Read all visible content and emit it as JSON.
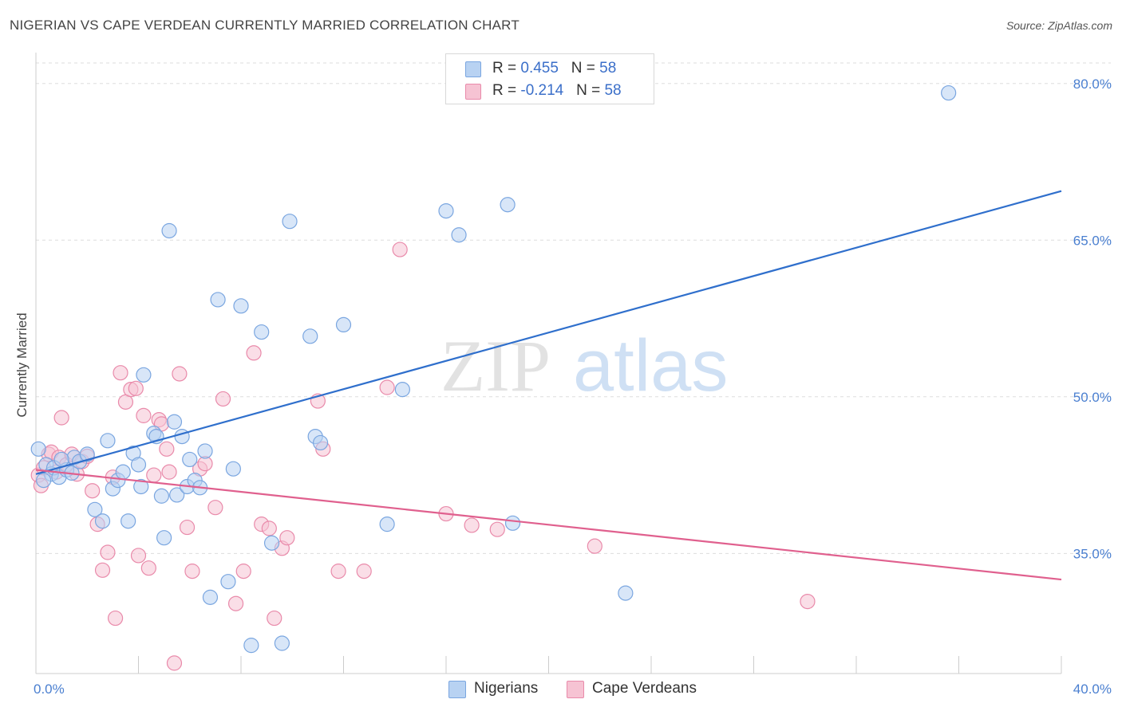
{
  "header": {
    "title": "NIGERIAN VS CAPE VERDEAN CURRENTLY MARRIED CORRELATION CHART",
    "source": "Source: ZipAtlas.com"
  },
  "legend": {
    "row1": {
      "r_label": "R = ",
      "r_value": "0.455",
      "n_label": "N = ",
      "n_value": "58"
    },
    "row2": {
      "r_label": "R = ",
      "r_value": "-0.214",
      "n_label": "N = ",
      "n_value": "58"
    }
  },
  "watermark": {
    "zip": "ZIP",
    "atlas": "atlas"
  },
  "colors": {
    "blue_fill": "#b8d2f2",
    "blue_stroke": "#7aa6e0",
    "blue_line": "#2f6fcc",
    "pink_fill": "#f6c3d3",
    "pink_stroke": "#e98aaa",
    "pink_line": "#e0608e",
    "tick_text": "#4a7fd0",
    "grid": "#dddddd"
  },
  "chart_data": {
    "type": "scatter",
    "xlabel": "",
    "ylabel": "Currently Married",
    "xlim": [
      0,
      40
    ],
    "ylim": [
      23.5,
      82.5
    ],
    "x_tick_labels": [
      {
        "value": 0,
        "label": "0.0%"
      },
      {
        "value": 40,
        "label": "40.0%"
      }
    ],
    "y_tick_labels": [
      {
        "value": 35,
        "label": "35.0%"
      },
      {
        "value": 50,
        "label": "50.0%"
      },
      {
        "value": 65,
        "label": "65.0%"
      },
      {
        "value": 80,
        "label": "80.0%"
      }
    ],
    "grid": true,
    "legend_position": "top-center",
    "series": [
      {
        "name": "Nigerians",
        "color": "#b8d2f2",
        "trend": {
          "x": [
            0,
            40
          ],
          "y": [
            42.6,
            69.7
          ]
        },
        "points": [
          [
            0.1,
            45.0
          ],
          [
            0.4,
            43.5
          ],
          [
            0.6,
            42.6
          ],
          [
            0.7,
            43.2
          ],
          [
            0.9,
            42.3
          ],
          [
            1.2,
            43.0
          ],
          [
            1.4,
            42.7
          ],
          [
            1.5,
            44.2
          ],
          [
            1.7,
            43.8
          ],
          [
            2.0,
            44.5
          ],
          [
            2.3,
            39.2
          ],
          [
            2.6,
            38.1
          ],
          [
            2.8,
            45.8
          ],
          [
            3.0,
            41.2
          ],
          [
            3.2,
            42.0
          ],
          [
            3.4,
            42.8
          ],
          [
            3.6,
            38.1
          ],
          [
            3.8,
            44.6
          ],
          [
            4.0,
            43.5
          ],
          [
            4.1,
            41.4
          ],
          [
            4.2,
            52.1
          ],
          [
            4.6,
            46.5
          ],
          [
            4.7,
            46.2
          ],
          [
            4.9,
            40.5
          ],
          [
            5.0,
            36.5
          ],
          [
            5.2,
            65.9
          ],
          [
            5.4,
            47.6
          ],
          [
            5.5,
            40.6
          ],
          [
            5.7,
            46.2
          ],
          [
            5.9,
            41.4
          ],
          [
            6.0,
            44.0
          ],
          [
            6.2,
            42.0
          ],
          [
            6.4,
            41.3
          ],
          [
            6.6,
            44.8
          ],
          [
            6.8,
            30.8
          ],
          [
            7.1,
            59.3
          ],
          [
            7.5,
            32.3
          ],
          [
            7.7,
            43.1
          ],
          [
            8.0,
            58.7
          ],
          [
            8.4,
            26.2
          ],
          [
            8.8,
            56.2
          ],
          [
            9.2,
            36.0
          ],
          [
            9.6,
            26.4
          ],
          [
            9.9,
            66.8
          ],
          [
            10.7,
            55.8
          ],
          [
            10.9,
            46.2
          ],
          [
            11.1,
            45.6
          ],
          [
            12.0,
            56.9
          ],
          [
            13.7,
            37.8
          ],
          [
            14.3,
            50.7
          ],
          [
            16.0,
            67.8
          ],
          [
            16.5,
            65.5
          ],
          [
            18.6,
            37.9
          ],
          [
            18.4,
            68.4
          ],
          [
            23.0,
            31.2
          ],
          [
            35.6,
            79.1
          ],
          [
            0.3,
            42.0
          ],
          [
            1.0,
            44.0
          ]
        ]
      },
      {
        "name": "Cape Verdeans",
        "color": "#f6c3d3",
        "trend": {
          "x": [
            0,
            40
          ],
          "y": [
            43.0,
            32.5
          ]
        },
        "points": [
          [
            0.1,
            42.5
          ],
          [
            0.2,
            41.5
          ],
          [
            0.3,
            43.2
          ],
          [
            0.5,
            44.5
          ],
          [
            0.6,
            44.7
          ],
          [
            0.8,
            42.8
          ],
          [
            0.9,
            44.2
          ],
          [
            1.0,
            48.0
          ],
          [
            1.2,
            43.5
          ],
          [
            1.4,
            44.5
          ],
          [
            1.6,
            42.6
          ],
          [
            1.8,
            43.8
          ],
          [
            2.0,
            44.3
          ],
          [
            2.2,
            41.0
          ],
          [
            2.4,
            37.8
          ],
          [
            2.6,
            33.4
          ],
          [
            2.8,
            35.1
          ],
          [
            3.0,
            42.3
          ],
          [
            3.1,
            28.8
          ],
          [
            3.3,
            52.3
          ],
          [
            3.5,
            49.5
          ],
          [
            3.7,
            50.7
          ],
          [
            3.9,
            50.8
          ],
          [
            4.0,
            34.8
          ],
          [
            4.2,
            48.2
          ],
          [
            4.4,
            33.6
          ],
          [
            4.6,
            42.5
          ],
          [
            4.8,
            47.8
          ],
          [
            4.9,
            47.4
          ],
          [
            5.1,
            45.0
          ],
          [
            5.2,
            42.8
          ],
          [
            5.4,
            24.5
          ],
          [
            5.6,
            52.2
          ],
          [
            5.9,
            37.5
          ],
          [
            6.1,
            33.3
          ],
          [
            6.4,
            43.1
          ],
          [
            6.6,
            43.6
          ],
          [
            7.0,
            39.4
          ],
          [
            7.3,
            49.8
          ],
          [
            7.8,
            30.2
          ],
          [
            8.1,
            33.3
          ],
          [
            8.5,
            54.2
          ],
          [
            8.8,
            37.8
          ],
          [
            9.1,
            37.4
          ],
          [
            9.3,
            28.8
          ],
          [
            9.6,
            35.5
          ],
          [
            9.8,
            36.5
          ],
          [
            11.0,
            49.6
          ],
          [
            11.2,
            45.0
          ],
          [
            11.8,
            33.3
          ],
          [
            12.8,
            33.3
          ],
          [
            13.7,
            50.9
          ],
          [
            14.2,
            64.1
          ],
          [
            16.0,
            38.8
          ],
          [
            17.0,
            37.7
          ],
          [
            18.0,
            37.3
          ],
          [
            21.8,
            35.7
          ],
          [
            30.1,
            30.4
          ]
        ]
      }
    ]
  }
}
